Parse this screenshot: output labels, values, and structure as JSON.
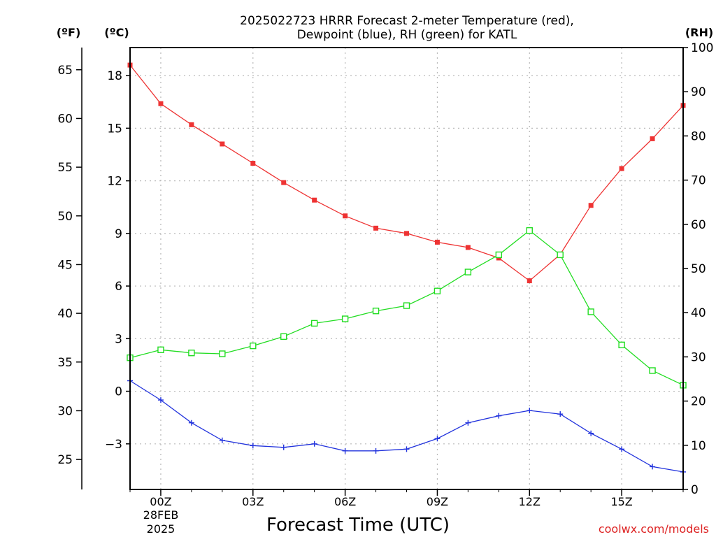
{
  "chart_data": {
    "type": "line",
    "title_line1": "2025022723 HRRR Forecast 2-meter Temperature (red),",
    "title_line2": "Dewpoint (blue), RH (green) for KATL",
    "xlabel": "Forecast Time (UTC)",
    "left_unit_f": "(ºF)",
    "left_unit_c": "(ºC)",
    "right_unit": "(RH)",
    "date_label_line1": "28FEB",
    "date_label_line2": "2025",
    "watermark": "coolwx.com/models",
    "x_ticks": [
      {
        "hour": 0,
        "label": "00Z"
      },
      {
        "hour": 3,
        "label": "03Z"
      },
      {
        "hour": 6,
        "label": "06Z"
      },
      {
        "hour": 9,
        "label": "09Z"
      },
      {
        "hour": 12,
        "label": "12Z"
      },
      {
        "hour": 15,
        "label": "15Z"
      }
    ],
    "x_range": [
      -1,
      17
    ],
    "x_hours": [
      -1,
      0,
      1,
      2,
      3,
      4,
      5,
      6,
      7,
      8,
      9,
      10,
      11,
      12,
      13,
      14,
      15,
      16,
      17
    ],
    "celsius_ticks": [
      -3,
      0,
      3,
      6,
      9,
      12,
      15,
      18
    ],
    "celsius_range": [
      -5.6,
      19.6
    ],
    "fahrenheit_ticks": [
      25,
      30,
      35,
      40,
      45,
      50,
      55,
      60,
      65
    ],
    "rh_ticks": [
      0,
      10,
      20,
      30,
      40,
      50,
      60,
      70,
      80,
      90,
      100
    ],
    "rh_range": [
      0,
      100
    ],
    "grid": true,
    "series": [
      {
        "name": "Temperature",
        "unit": "°C",
        "color": "#ee3333",
        "marker": "filled-square",
        "values": [
          18.6,
          16.4,
          15.2,
          14.1,
          13.0,
          11.9,
          10.9,
          10.0,
          9.3,
          9.0,
          8.5,
          8.2,
          7.6,
          6.3,
          7.8,
          10.6,
          12.7,
          14.4,
          16.3
        ]
      },
      {
        "name": "Dewpoint",
        "unit": "°C",
        "color": "#2233dd",
        "marker": "plus",
        "values": [
          0.6,
          -0.5,
          -1.8,
          -2.8,
          -3.1,
          -3.2,
          -3.0,
          -3.4,
          -3.4,
          -3.3,
          -2.7,
          -1.8,
          -1.4,
          -1.1,
          -1.3,
          -2.4,
          -3.3,
          -4.3,
          -4.6
        ]
      },
      {
        "name": "RH",
        "unit": "%",
        "color": "#22dd22",
        "marker": "open-square",
        "values": [
          29.8,
          31.6,
          30.9,
          30.7,
          32.5,
          34.6,
          37.6,
          38.6,
          40.4,
          41.6,
          44.9,
          49.2,
          53.1,
          58.6,
          53.1,
          40.2,
          32.7,
          26.9,
          23.6
        ]
      }
    ]
  }
}
